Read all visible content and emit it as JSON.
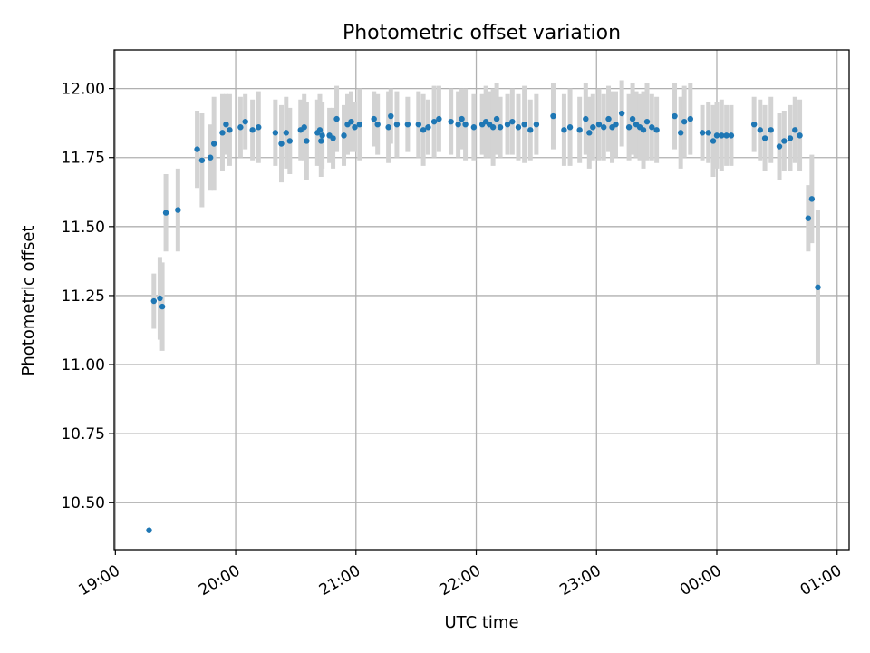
{
  "chart_data": {
    "type": "scatter",
    "title": "Photometric offset variation",
    "xlabel": "UTC time",
    "ylabel": "Photometric offset",
    "x_unit": "hours after 19:00 UTC",
    "xlim": [
      -0.01,
      6.1
    ],
    "ylim": [
      10.33,
      12.14
    ],
    "xticks": [
      {
        "label": "19:00",
        "value": 0
      },
      {
        "label": "20:00",
        "value": 1
      },
      {
        "label": "21:00",
        "value": 2
      },
      {
        "label": "22:00",
        "value": 3
      },
      {
        "label": "23:00",
        "value": 4
      },
      {
        "label": "00:00",
        "value": 5
      },
      {
        "label": "01:00",
        "value": 6
      }
    ],
    "yticks": [
      {
        "label": "10.50",
        "value": 10.5
      },
      {
        "label": "10.75",
        "value": 10.75
      },
      {
        "label": "11.00",
        "value": 11.0
      },
      {
        "label": "11.25",
        "value": 11.25
      },
      {
        "label": "11.50",
        "value": 11.5
      },
      {
        "label": "11.75",
        "value": 11.75
      },
      {
        "label": "12.00",
        "value": 12.0
      }
    ],
    "grid": true,
    "colors": {
      "points": "#1f77b4",
      "errorbars": "#d3d3d3",
      "grid": "#b0b0b0"
    },
    "points": [
      [
        0.28,
        10.4,
        0.0
      ],
      [
        0.32,
        11.23,
        0.1
      ],
      [
        0.37,
        11.24,
        0.15
      ],
      [
        0.39,
        11.21,
        0.16
      ],
      [
        0.42,
        11.55,
        0.14
      ],
      [
        0.52,
        11.56,
        0.15
      ],
      [
        0.68,
        11.78,
        0.14
      ],
      [
        0.72,
        11.74,
        0.17
      ],
      [
        0.79,
        11.75,
        0.12
      ],
      [
        0.82,
        11.8,
        0.17
      ],
      [
        0.89,
        11.84,
        0.14
      ],
      [
        0.92,
        11.87,
        0.11
      ],
      [
        0.95,
        11.85,
        0.13
      ],
      [
        1.04,
        11.86,
        0.11
      ],
      [
        1.08,
        11.88,
        0.1
      ],
      [
        1.14,
        11.85,
        0.11
      ],
      [
        1.19,
        11.86,
        0.13
      ],
      [
        1.33,
        11.84,
        0.12
      ],
      [
        1.38,
        11.8,
        0.14
      ],
      [
        1.42,
        11.84,
        0.13
      ],
      [
        1.45,
        11.81,
        0.12
      ],
      [
        1.54,
        11.85,
        0.11
      ],
      [
        1.57,
        11.86,
        0.12
      ],
      [
        1.59,
        11.81,
        0.14
      ],
      [
        1.68,
        11.84,
        0.12
      ],
      [
        1.7,
        11.85,
        0.13
      ],
      [
        1.71,
        11.81,
        0.13
      ],
      [
        1.72,
        11.83,
        0.12
      ],
      [
        1.78,
        11.83,
        0.1
      ],
      [
        1.81,
        11.82,
        0.11
      ],
      [
        1.84,
        11.89,
        0.12
      ],
      [
        1.9,
        11.83,
        0.11
      ],
      [
        1.93,
        11.87,
        0.11
      ],
      [
        1.96,
        11.88,
        0.11
      ],
      [
        1.99,
        11.86,
        0.09
      ],
      [
        2.03,
        11.87,
        0.13
      ],
      [
        2.15,
        11.89,
        0.1
      ],
      [
        2.18,
        11.87,
        0.11
      ],
      [
        2.27,
        11.86,
        0.13
      ],
      [
        2.29,
        11.9,
        0.1
      ],
      [
        2.34,
        11.87,
        0.12
      ],
      [
        2.43,
        11.87,
        0.1
      ],
      [
        2.52,
        11.87,
        0.12
      ],
      [
        2.56,
        11.85,
        0.13
      ],
      [
        2.6,
        11.86,
        0.1
      ],
      [
        2.65,
        11.88,
        0.13
      ],
      [
        2.69,
        11.89,
        0.12
      ],
      [
        2.79,
        11.88,
        0.12
      ],
      [
        2.85,
        11.87,
        0.12
      ],
      [
        2.88,
        11.89,
        0.11
      ],
      [
        2.91,
        11.87,
        0.13
      ],
      [
        2.98,
        11.86,
        0.12
      ],
      [
        3.05,
        11.87,
        0.11
      ],
      [
        3.08,
        11.88,
        0.13
      ],
      [
        3.11,
        11.87,
        0.12
      ],
      [
        3.14,
        11.86,
        0.14
      ],
      [
        3.17,
        11.89,
        0.13
      ],
      [
        3.2,
        11.86,
        0.11
      ],
      [
        3.26,
        11.87,
        0.11
      ],
      [
        3.3,
        11.88,
        0.12
      ],
      [
        3.35,
        11.86,
        0.12
      ],
      [
        3.4,
        11.87,
        0.14
      ],
      [
        3.45,
        11.85,
        0.11
      ],
      [
        3.5,
        11.87,
        0.11
      ],
      [
        3.64,
        11.9,
        0.12
      ],
      [
        3.73,
        11.85,
        0.13
      ],
      [
        3.78,
        11.86,
        0.14
      ],
      [
        3.86,
        11.85,
        0.12
      ],
      [
        3.91,
        11.89,
        0.13
      ],
      [
        3.94,
        11.84,
        0.13
      ],
      [
        3.97,
        11.86,
        0.12
      ],
      [
        4.02,
        11.87,
        0.13
      ],
      [
        4.06,
        11.86,
        0.12
      ],
      [
        4.1,
        11.89,
        0.12
      ],
      [
        4.13,
        11.86,
        0.13
      ],
      [
        4.16,
        11.87,
        0.12
      ],
      [
        4.21,
        11.91,
        0.12
      ],
      [
        4.27,
        11.86,
        0.12
      ],
      [
        4.3,
        11.89,
        0.13
      ],
      [
        4.33,
        11.87,
        0.12
      ],
      [
        4.36,
        11.86,
        0.12
      ],
      [
        4.39,
        11.85,
        0.14
      ],
      [
        4.42,
        11.88,
        0.14
      ],
      [
        4.46,
        11.86,
        0.12
      ],
      [
        4.5,
        11.85,
        0.12
      ],
      [
        4.65,
        11.9,
        0.12
      ],
      [
        4.7,
        11.84,
        0.13
      ],
      [
        4.73,
        11.88,
        0.13
      ],
      [
        4.78,
        11.89,
        0.13
      ],
      [
        4.88,
        11.84,
        0.1
      ],
      [
        4.93,
        11.84,
        0.11
      ],
      [
        4.97,
        11.81,
        0.13
      ],
      [
        5.0,
        11.83,
        0.12
      ],
      [
        5.04,
        11.83,
        0.13
      ],
      [
        5.08,
        11.83,
        0.11
      ],
      [
        5.12,
        11.83,
        0.11
      ],
      [
        5.31,
        11.87,
        0.1
      ],
      [
        5.36,
        11.85,
        0.11
      ],
      [
        5.4,
        11.82,
        0.12
      ],
      [
        5.45,
        11.85,
        0.12
      ],
      [
        5.52,
        11.79,
        0.12
      ],
      [
        5.56,
        11.81,
        0.11
      ],
      [
        5.61,
        11.82,
        0.12
      ],
      [
        5.65,
        11.85,
        0.12
      ],
      [
        5.69,
        11.83,
        0.13
      ],
      [
        5.76,
        11.53,
        0.12
      ],
      [
        5.79,
        11.6,
        0.16
      ],
      [
        5.84,
        11.28,
        0.28
      ]
    ]
  }
}
